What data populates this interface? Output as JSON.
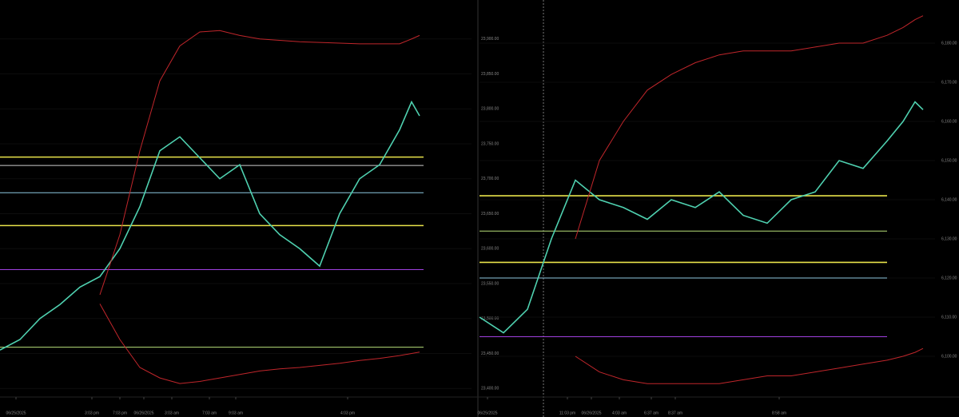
{
  "chart_data": [
    {
      "type": "line",
      "x": [
        0,
        25,
        50,
        75,
        100,
        125,
        150,
        175,
        200,
        225,
        250,
        275,
        300,
        325,
        350,
        375,
        400,
        425,
        450,
        475,
        500,
        515,
        525
      ],
      "xlim": [
        0,
        590
      ],
      "xticks": [
        {
          "value": 20,
          "label": "06/25/2025"
        },
        {
          "value": 115,
          "label": "3:03 pm"
        },
        {
          "value": 150,
          "label": "7:03 pm"
        },
        {
          "value": 180,
          "label": "06/26/2025"
        },
        {
          "value": 215,
          "label": "3:03 am"
        },
        {
          "value": 262,
          "label": "7:03 am"
        },
        {
          "value": 295,
          "label": "9:03 am"
        },
        {
          "value": 435,
          "label": "4:03 pm"
        }
      ],
      "ylim": [
        23390,
        23950
      ],
      "yticks": [
        {
          "value": 23400,
          "label": "23,400.00"
        },
        {
          "value": 23450,
          "label": "23,450.00"
        },
        {
          "value": 23500,
          "label": "23,500.00"
        },
        {
          "value": 23550,
          "label": "23,550.00"
        },
        {
          "value": 23600,
          "label": "23,600.00"
        },
        {
          "value": 23650,
          "label": "23,650.00"
        },
        {
          "value": 23700,
          "label": "23,700.00"
        },
        {
          "value": 23750,
          "label": "23,750.00"
        },
        {
          "value": 23800,
          "label": "23,800.00"
        },
        {
          "value": 23850,
          "label": "23,850.00"
        },
        {
          "value": 23900,
          "label": "23,900.00"
        }
      ],
      "series": [
        {
          "color": "#4fd1b0",
          "values": [
            23455,
            23470,
            23500,
            23520,
            23545,
            23560,
            23600,
            23660,
            23740,
            23760,
            23730,
            23700,
            23720,
            23650,
            23620,
            23600,
            23575,
            23650,
            23700,
            23720,
            23770,
            23810,
            23790
          ]
        },
        {
          "color": "#c0262b",
          "values": [
            null,
            null,
            null,
            null,
            null,
            23534,
            23620,
            23740,
            23840,
            23890,
            23910,
            23912,
            23905,
            23900,
            23898,
            23896,
            23895,
            23894,
            23893,
            23893,
            23893,
            23900,
            23905
          ]
        },
        {
          "color": "#c0262b",
          "values": [
            null,
            null,
            null,
            null,
            null,
            23521,
            23470,
            23430,
            23415,
            23407,
            23410,
            23415,
            23420,
            23425,
            23428,
            23430,
            23433,
            23436,
            23440,
            23443,
            23447,
            23450,
            23452
          ]
        }
      ],
      "levels": [
        {
          "value": 23731,
          "color": "#e8e34a"
        },
        {
          "value": 23633,
          "color": "#e8e34a"
        },
        {
          "value": 23719,
          "color": "#cccccc"
        },
        {
          "value": 23570,
          "color": "#a040e0"
        },
        {
          "value": 23459,
          "color": "#b8e07a"
        },
        {
          "value": 23680,
          "color": "#8ec7e0"
        }
      ]
    },
    {
      "type": "line",
      "x": [
        0,
        30,
        60,
        90,
        120,
        150,
        180,
        210,
        240,
        270,
        300,
        330,
        360,
        390,
        420,
        450,
        480,
        510,
        530,
        545,
        555
      ],
      "xlim": [
        0,
        570
      ],
      "xticks": [
        {
          "value": 10,
          "label": "06/25/2025"
        },
        {
          "value": 110,
          "label": "11:03 pm"
        },
        {
          "value": 140,
          "label": "06/26/2025"
        },
        {
          "value": 175,
          "label": "4:03 am"
        },
        {
          "value": 215,
          "label": "6:37 am"
        },
        {
          "value": 245,
          "label": "8:37 am"
        },
        {
          "value": 375,
          "label": "8:58 am"
        }
      ],
      "ylim": [
        6090,
        6190
      ],
      "yticks": [
        {
          "value": 6100,
          "label": "6,100.00"
        },
        {
          "value": 6110,
          "label": "6,110.00"
        },
        {
          "value": 6120,
          "label": "6,120.00"
        },
        {
          "value": 6130,
          "label": "6,130.00"
        },
        {
          "value": 6140,
          "label": "6,140.00"
        },
        {
          "value": 6150,
          "label": "6,150.00"
        },
        {
          "value": 6160,
          "label": "6,160.00"
        },
        {
          "value": 6170,
          "label": "6,170.00"
        },
        {
          "value": 6180,
          "label": "6,180.00"
        }
      ],
      "series": [
        {
          "color": "#4fd1b0",
          "values": [
            6110,
            6106,
            6112,
            6130,
            6145,
            6140,
            6138,
            6135,
            6140,
            6138,
            6142,
            6136,
            6134,
            6140,
            6142,
            6150,
            6148,
            6155,
            6160,
            6165,
            6163
          ]
        },
        {
          "color": "#c0262b",
          "values": [
            null,
            null,
            null,
            null,
            6130,
            6150,
            6160,
            6168,
            6172,
            6175,
            6177,
            6178,
            6178,
            6178,
            6179,
            6180,
            6180,
            6182,
            6184,
            6186,
            6187
          ]
        },
        {
          "color": "#c0262b",
          "values": [
            null,
            null,
            null,
            null,
            6100,
            6096,
            6094,
            6093,
            6093,
            6093,
            6093,
            6094,
            6095,
            6095,
            6096,
            6097,
            6098,
            6099,
            6100,
            6101,
            6102
          ]
        }
      ],
      "levels": [
        {
          "value": 6141,
          "color": "#e8e34a"
        },
        {
          "value": 6124,
          "color": "#e8e34a"
        },
        {
          "value": 6105,
          "color": "#a040e0"
        },
        {
          "value": 6132,
          "color": "#b8e07a"
        },
        {
          "value": 6120,
          "color": "#8ec7e0"
        }
      ]
    }
  ]
}
